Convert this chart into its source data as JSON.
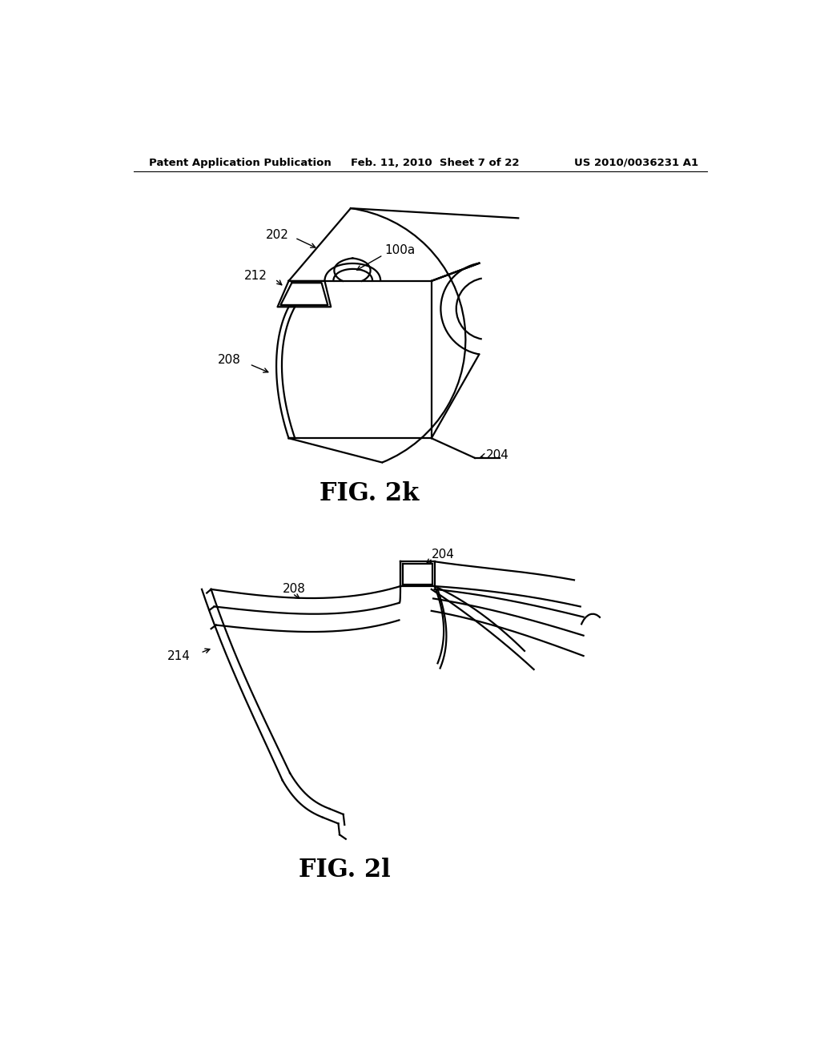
{
  "bg_color": "#ffffff",
  "header_left": "Patent Application Publication",
  "header_mid": "Feb. 11, 2010  Sheet 7 of 22",
  "header_right": "US 2010/0036231 A1",
  "fig2k_label": "FIG. 2k",
  "fig2l_label": "FIG. 2l",
  "line_color": "#000000",
  "lw": 1.6,
  "label_fontsize": 11,
  "fig_label_fontsize": 22
}
